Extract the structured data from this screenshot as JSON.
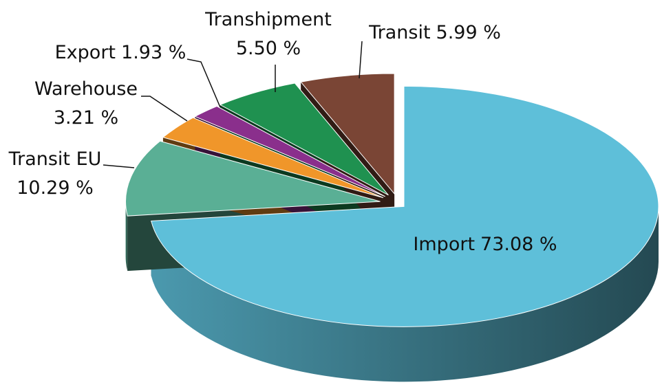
{
  "chart_data": {
    "type": "pie",
    "categories": [
      "Import",
      "Transit EU",
      "Warehouse",
      "Export",
      "Transhipment",
      "Transit"
    ],
    "values": [
      73.08,
      10.29,
      3.21,
      1.93,
      5.5,
      5.99
    ],
    "value_labels": [
      "73.08 %",
      "10.29 %",
      "3.21 %",
      "1.93 %",
      "5.50 %",
      "5.99 %"
    ],
    "colors": [
      "#5ebfd9",
      "#5aaf95",
      "#f0962a",
      "#8a2f8c",
      "#1f9150",
      "#7a4535"
    ]
  }
}
